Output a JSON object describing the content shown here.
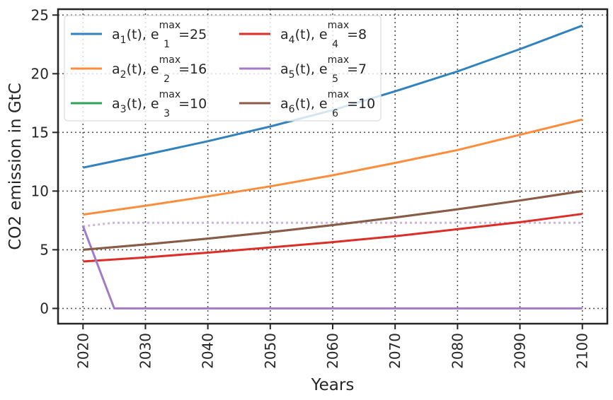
{
  "chart_data": {
    "type": "line",
    "xlabel": "Years",
    "ylabel": "CO2 emission in GtC",
    "xlim": [
      2016,
      2104
    ],
    "ylim": [
      -1.3,
      25.5
    ],
    "xticks": [
      "2020",
      "2030",
      "2040",
      "2050",
      "2060",
      "2070",
      "2080",
      "2090",
      "2100"
    ],
    "yticks": [
      "0",
      "5",
      "10",
      "15",
      "20",
      "25"
    ],
    "grid": true,
    "legend_placement": "top-left",
    "series": [
      {
        "name": "a1(t), e1max=25",
        "legend_parts": {
          "base": "a",
          "sub1": "1",
          "mid": "(t), e",
          "sup": "max",
          "sub2": "1",
          "rest": "=25"
        },
        "color": "#3182bd",
        "style": "solid",
        "x": [
          2020,
          2030,
          2040,
          2050,
          2060,
          2070,
          2080,
          2090,
          2100
        ],
        "values": [
          12.0,
          13.1,
          14.25,
          15.5,
          16.9,
          18.5,
          20.2,
          22.1,
          24.1
        ]
      },
      {
        "name": "a2(t), e2max=16",
        "legend_parts": {
          "base": "a",
          "sub1": "2",
          "mid": "(t), e",
          "sup": "max",
          "sub2": "2",
          "rest": "=16"
        },
        "color": "#fd8d3c",
        "style": "solid",
        "x": [
          2020,
          2030,
          2040,
          2050,
          2060,
          2070,
          2080,
          2090,
          2100
        ],
        "values": [
          8.0,
          8.75,
          9.55,
          10.4,
          11.35,
          12.4,
          13.5,
          14.8,
          16.1
        ]
      },
      {
        "name": "a3(t), e3max=10",
        "legend_parts": {
          "base": "a",
          "sub1": "3",
          "mid": "(t), e",
          "sup": "max",
          "sub2": "3",
          "rest": "=10"
        },
        "color": "#31a354",
        "style": "solid",
        "x": [
          2020,
          2030,
          2040,
          2050,
          2060,
          2070,
          2080,
          2090,
          2100
        ],
        "values": [
          5.0,
          5.45,
          5.95,
          6.5,
          7.1,
          7.75,
          8.45,
          9.2,
          10.0
        ]
      },
      {
        "name": "a4(t), e4max=8",
        "legend_parts": {
          "base": "a",
          "sub1": "4",
          "mid": "(t), e",
          "sup": "max",
          "sub2": "4",
          "rest": "=8"
        },
        "color": "#de2d26",
        "style": "solid",
        "x": [
          2020,
          2030,
          2040,
          2050,
          2060,
          2070,
          2080,
          2090,
          2100
        ],
        "values": [
          4.0,
          4.35,
          4.75,
          5.2,
          5.65,
          6.15,
          6.75,
          7.35,
          8.05
        ]
      },
      {
        "name": "a5(t), e5max=7",
        "legend_parts": {
          "base": "a",
          "sub1": "5",
          "mid": "(t), e",
          "sup": "max",
          "sub2": "5",
          "rest": "=7"
        },
        "color": "#a27ac8",
        "style": "solid",
        "x": [
          2020,
          2025,
          2030,
          2040,
          2050,
          2060,
          2070,
          2080,
          2090,
          2100
        ],
        "values": [
          7.0,
          0.0,
          0.0,
          0.0,
          0.0,
          0.0,
          0.0,
          0.0,
          0.0,
          0.0
        ]
      },
      {
        "name": "a6(t), e6max=10",
        "legend_parts": {
          "base": "a",
          "sub1": "6",
          "mid": "(t), e",
          "sup": "max",
          "sub2": "6",
          "rest": "=10"
        },
        "color": "#8c5a46",
        "style": "solid",
        "x": [
          2020,
          2030,
          2040,
          2050,
          2060,
          2070,
          2080,
          2090,
          2100
        ],
        "values": [
          5.0,
          5.45,
          5.95,
          6.5,
          7.1,
          7.75,
          8.45,
          9.2,
          10.0
        ]
      }
    ],
    "extra_lines": [
      {
        "color": "#cdb3df",
        "style": "dotted",
        "x": [
          2020,
          2025,
          2030,
          2040,
          2050,
          2060,
          2070,
          2080,
          2090,
          2100
        ],
        "values": [
          7.0,
          7.3,
          7.3,
          7.3,
          7.3,
          7.3,
          7.3,
          7.3,
          7.3,
          7.3
        ]
      }
    ]
  }
}
